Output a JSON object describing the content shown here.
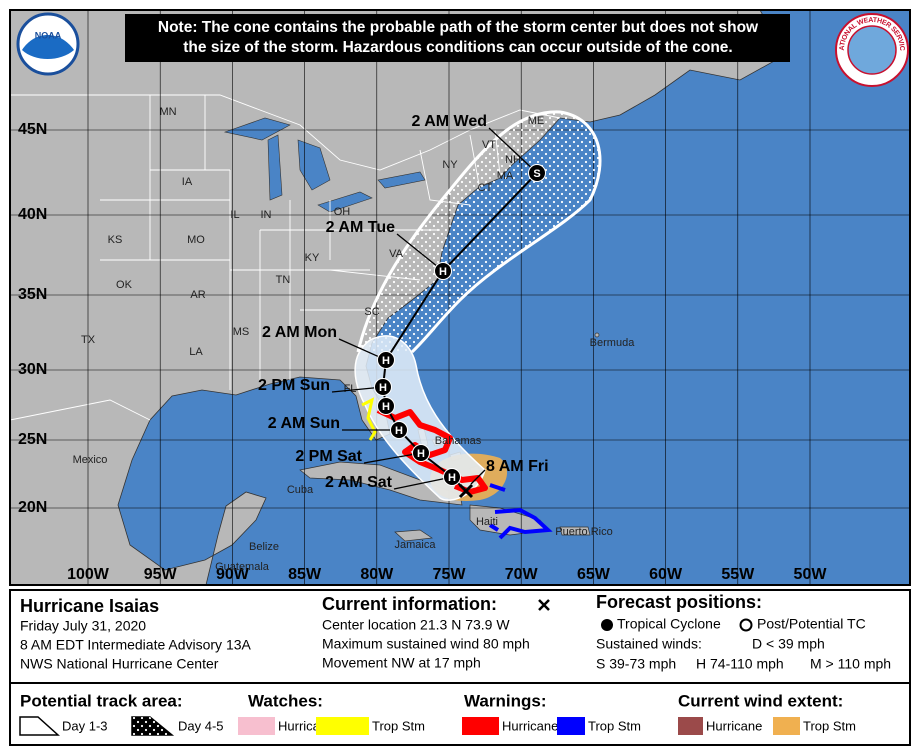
{
  "note": [
    "Note: The cone contains the probable path of the storm center but does not show",
    "the size of the storm. Hazardous conditions can occur outside of the cone."
  ],
  "logos": {
    "left": "NOAA",
    "right": "NATIONAL WEATHER SERVICE"
  },
  "latitudes": [
    "45N",
    "40N",
    "35N",
    "30N",
    "25N",
    "20N"
  ],
  "longitudes": [
    "100W",
    "95W",
    "90W",
    "85W",
    "80W",
    "75W",
    "70W",
    "65W",
    "60W",
    "55W",
    "50W"
  ],
  "places": [
    "MN",
    "IA",
    "MO",
    "KS",
    "OK",
    "TX",
    "AR",
    "LA",
    "MS",
    "IL",
    "IN",
    "OH",
    "KY",
    "TN",
    "VA",
    "NY",
    "VT",
    "NH",
    "ME",
    "MA",
    "CT",
    "FL",
    "SC",
    "Mexico",
    "Bahamas",
    "Cuba",
    "Jamaica",
    "Belize",
    "Guatemala",
    "Haiti",
    "Puerto Rico",
    "Bermuda"
  ],
  "current_position": "8 AM Fri",
  "forecast_points": [
    {
      "label": "2 AM Sat",
      "symbol": "H"
    },
    {
      "label": "2 PM Sat",
      "symbol": "H"
    },
    {
      "label": "2 AM Sun",
      "symbol": "H"
    },
    {
      "symbol": "H"
    },
    {
      "label": "2 PM Sun",
      "symbol": "H"
    },
    {
      "label": "2 AM Mon",
      "symbol": "H"
    },
    {
      "label": "2 AM Tue",
      "symbol": "H"
    },
    {
      "label": "2 AM Wed",
      "symbol": "S"
    }
  ],
  "info": {
    "storm": "Hurricane Isaias",
    "date": "Friday July 31, 2020",
    "advisory": "8 AM EDT Intermediate Advisory 13A",
    "center": "NWS National Hurricane Center"
  },
  "current": {
    "title": "Current information:",
    "lines": [
      "Center location 21.3 N 73.9 W",
      "Maximum sustained wind 80 mph",
      "Movement NW at 17 mph"
    ]
  },
  "forecast": {
    "title": "Forecast positions:",
    "tropical": "Tropical Cyclone",
    "post": "Post/Potential TC",
    "winds_title": "Sustained winds:",
    "winds": [
      "D < 39 mph",
      "S 39-73 mph",
      "H 74-110 mph",
      "M > 110 mph"
    ]
  },
  "legend": {
    "track": {
      "title": "Potential track area:",
      "items": [
        "Day 1-3",
        "Day 4-5"
      ]
    },
    "watches": {
      "title": "Watches:",
      "items": [
        "Hurricane",
        "Trop Stm"
      ]
    },
    "warnings": {
      "title": "Warnings:",
      "items": [
        "Hurricane",
        "Trop Stm"
      ]
    },
    "wind": {
      "title": "Current wind extent:",
      "items": [
        "Hurricane",
        "Trop Stm"
      ]
    }
  }
}
